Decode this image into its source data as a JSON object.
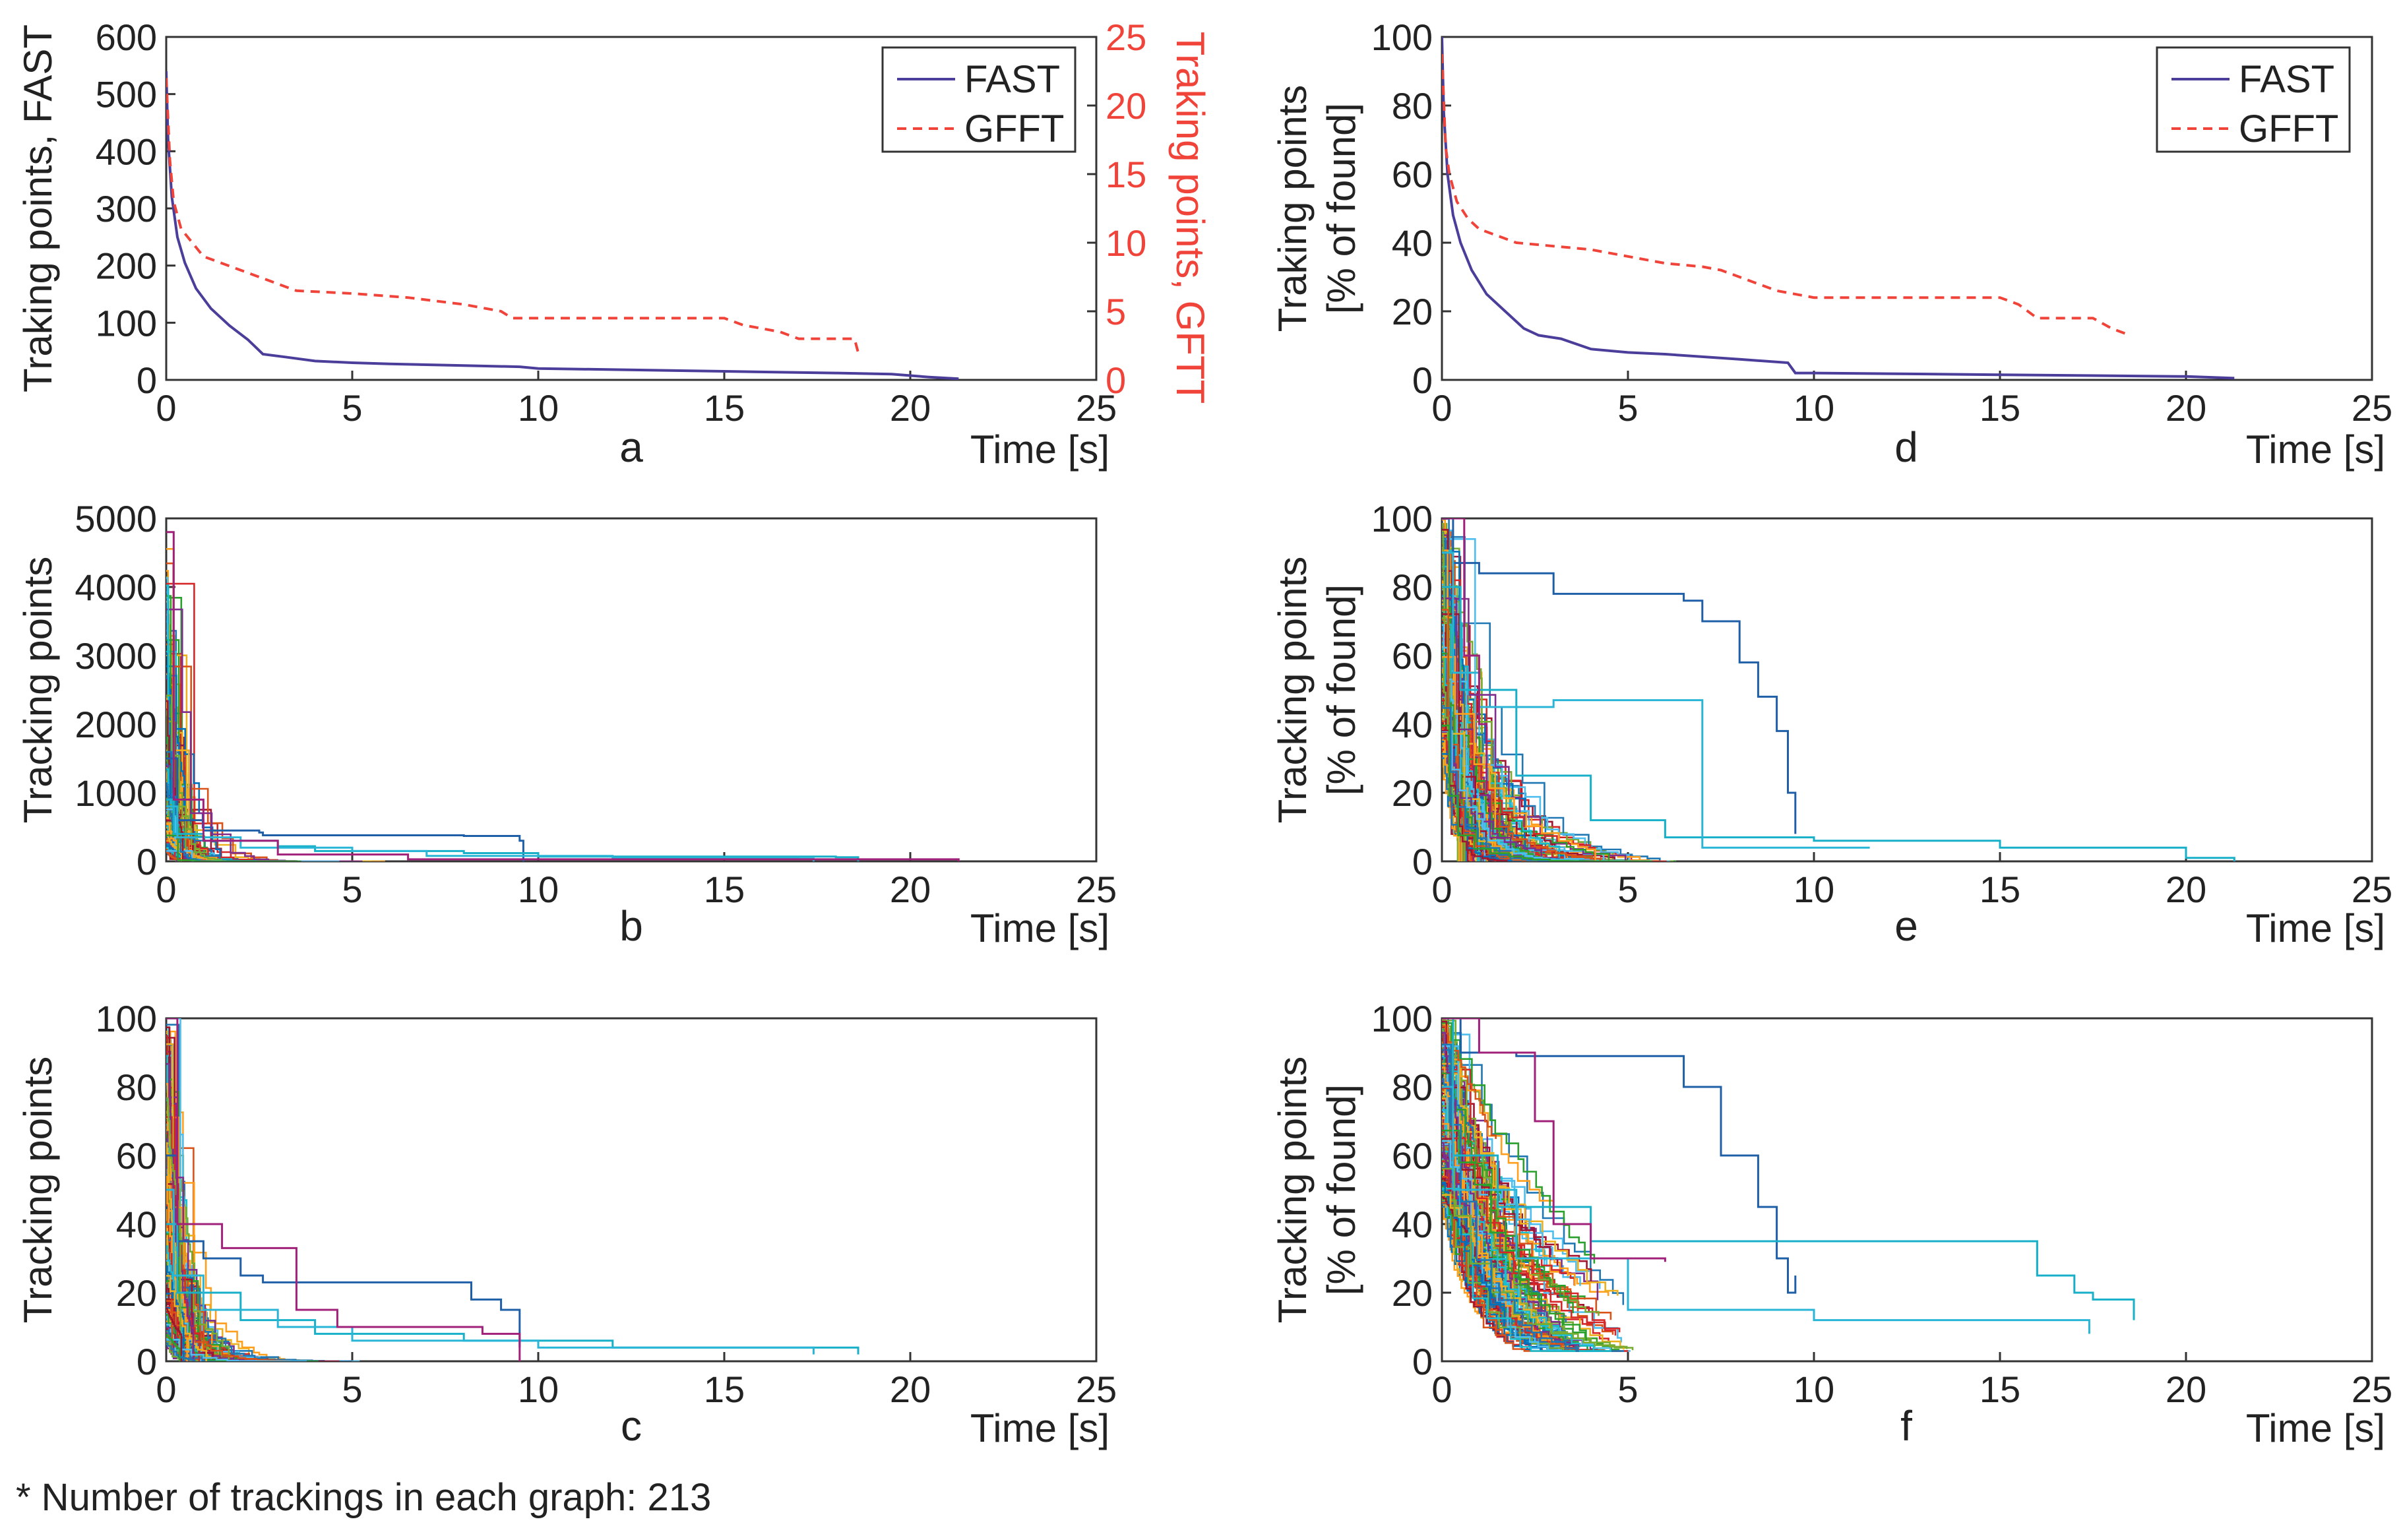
{
  "footnote": "* Number of trackings in each graph: 213",
  "colors": {
    "fast": "#4a3e9a",
    "gfft": "#f0443a",
    "gfft_axis": "#f0443a",
    "palette": [
      "#0072bd",
      "#d95319",
      "#edb120",
      "#7e2f8e",
      "#77ac30",
      "#4dbeee",
      "#a2142f",
      "#1f77b4",
      "#2ca02c",
      "#17becf",
      "#d62728",
      "#ff9f1c"
    ]
  },
  "chart_data": [
    {
      "id": "a",
      "type": "line",
      "letter": "a",
      "xlabel": "Time [s]",
      "ylabel": "Traking points, FAST",
      "y2label": "Traking points, GFTT",
      "xlim": [
        0,
        25
      ],
      "ylim": [
        0,
        600
      ],
      "y2lim": [
        0,
        25
      ],
      "xticks": [
        "0",
        "5",
        "10",
        "15",
        "20",
        "25"
      ],
      "yticks": [
        "0",
        "100",
        "200",
        "300",
        "400",
        "500",
        "600"
      ],
      "y2ticks": [
        "0",
        "5",
        "10",
        "15",
        "20",
        "25"
      ],
      "legend": [
        "FAST",
        "GFFT"
      ],
      "series": [
        {
          "name": "FAST",
          "axis": "left",
          "style": "solid",
          "x": [
            0,
            0.05,
            0.15,
            0.3,
            0.5,
            0.8,
            1.2,
            1.7,
            2.2,
            2.6,
            3.2,
            4,
            5,
            6,
            8,
            9.5,
            10,
            12,
            15,
            18,
            19.5,
            20.5,
            21.3
          ],
          "y": [
            540,
            420,
            320,
            250,
            205,
            160,
            125,
            95,
            70,
            45,
            40,
            33,
            30,
            28,
            25,
            23,
            20,
            18,
            15,
            12,
            10,
            5,
            2
          ]
        },
        {
          "name": "GFFT",
          "axis": "right",
          "style": "dashed",
          "x": [
            0,
            0.1,
            0.2,
            0.4,
            0.7,
            1.0,
            1.5,
            2.0,
            2.5,
            3.0,
            3.5,
            5,
            6.5,
            8,
            9,
            9.3,
            10,
            12,
            15,
            15.5,
            16.5,
            17,
            18.5,
            18.6
          ],
          "y": [
            22,
            16,
            13,
            11,
            10,
            9,
            8.5,
            8,
            7.5,
            7,
            6.5,
            6.3,
            6,
            5.5,
            5,
            4.5,
            4.5,
            4.5,
            4.5,
            4,
            3.5,
            3,
            3,
            2
          ]
        }
      ]
    },
    {
      "id": "d",
      "type": "line",
      "letter": "d",
      "xlabel": "Time [s]",
      "ylabel": "Traking points",
      "ylabel2": "[% of found]",
      "xlim": [
        0,
        25
      ],
      "ylim": [
        0,
        100
      ],
      "xticks": [
        "0",
        "5",
        "10",
        "15",
        "20",
        "25"
      ],
      "yticks": [
        "0",
        "20",
        "40",
        "60",
        "80",
        "100"
      ],
      "legend": [
        "FAST",
        "GFFT"
      ],
      "series": [
        {
          "name": "FAST",
          "style": "solid",
          "x": [
            0,
            0.05,
            0.15,
            0.3,
            0.5,
            0.8,
            1.2,
            1.7,
            2.2,
            2.6,
            3.2,
            4,
            5,
            6,
            8,
            9.3,
            9.5,
            10,
            12,
            15,
            18,
            20,
            21.3
          ],
          "y": [
            100,
            78,
            60,
            48,
            40,
            32,
            25,
            20,
            15,
            13,
            12,
            9,
            8,
            7.5,
            6,
            5,
            2,
            2,
            1.8,
            1.5,
            1.2,
            1,
            0.5
          ]
        },
        {
          "name": "GFFT",
          "style": "dashed",
          "x": [
            0,
            0.1,
            0.2,
            0.4,
            0.7,
            1.0,
            1.5,
            2.0,
            3.0,
            4.0,
            5.0,
            6.0,
            7.0,
            7.5,
            8.0,
            8.5,
            9.0,
            10,
            12,
            15,
            15.5,
            16,
            17.5,
            18,
            18.5
          ],
          "y": [
            95,
            68,
            60,
            52,
            47,
            44,
            42,
            40,
            39,
            38,
            36,
            34,
            33,
            32,
            30,
            28,
            26,
            24,
            24,
            24,
            22,
            18,
            18,
            15,
            13
          ]
        }
      ]
    },
    {
      "id": "b",
      "type": "line",
      "letter": "b",
      "xlabel": "Time [s]",
      "ylabel": "Tracking points",
      "xlim": [
        0,
        25
      ],
      "ylim": [
        0,
        5000
      ],
      "xticks": [
        "0",
        "5",
        "10",
        "15",
        "20",
        "25"
      ],
      "yticks": [
        "0",
        "1000",
        "2000",
        "3000",
        "4000",
        "5000"
      ],
      "series_count": 213,
      "highlight_series": [
        {
          "x": [
            0,
            0.3,
            1,
            2.5,
            2.6,
            8,
            9.5,
            9.6
          ],
          "y": [
            1500,
            600,
            450,
            420,
            380,
            370,
            300,
            0
          ]
        },
        {
          "x": [
            0,
            0.2,
            1,
            3,
            4,
            8,
            10,
            18,
            18.6
          ],
          "y": [
            900,
            400,
            300,
            220,
            150,
            120,
            70,
            60,
            0
          ]
        },
        {
          "x": [
            0,
            0.3,
            2,
            5,
            7,
            12,
            17,
            17.4
          ],
          "y": [
            800,
            350,
            200,
            150,
            80,
            50,
            40,
            0
          ]
        },
        {
          "x": [
            0,
            0.2,
            1,
            3,
            6.5,
            21.3
          ],
          "y": [
            4800,
            900,
            300,
            100,
            30,
            0
          ]
        }
      ]
    },
    {
      "id": "e",
      "type": "line",
      "letter": "e",
      "xlabel": "Time [s]",
      "ylabel": "Tracking points",
      "ylabel2": "[% of found]",
      "xlim": [
        0,
        25
      ],
      "ylim": [
        0,
        100
      ],
      "xticks": [
        "0",
        "5",
        "10",
        "15",
        "20",
        "25"
      ],
      "yticks": [
        "0",
        "20",
        "40",
        "60",
        "80",
        "100"
      ],
      "series_count": 213,
      "highlight_series": [
        {
          "x": [
            0,
            0.3,
            1,
            3,
            6.5,
            7,
            8,
            8.5,
            9,
            9.3,
            9.5
          ],
          "y": [
            100,
            87,
            84,
            78,
            76,
            70,
            58,
            48,
            38,
            20,
            8
          ]
        },
        {
          "x": [
            0,
            0.5,
            2,
            4,
            6,
            10,
            15,
            20,
            21.3
          ],
          "y": [
            80,
            50,
            25,
            12,
            7,
            6,
            4,
            1,
            0
          ]
        },
        {
          "x": [
            0,
            0.3,
            1,
            2,
            3,
            5.5,
            5.6,
            6.9,
            7,
            11.5
          ],
          "y": [
            90,
            55,
            45,
            45,
            47,
            47,
            47,
            47,
            4,
            4
          ]
        },
        {
          "x": [
            0,
            0.2,
            0.5,
            0.6,
            1,
            1.2
          ],
          "y": [
            100,
            100,
            100,
            60,
            40,
            20
          ]
        }
      ]
    },
    {
      "id": "c",
      "type": "line",
      "letter": "c",
      "xlabel": "Time [s]",
      "ylabel": "Tracking points",
      "xlim": [
        0,
        25
      ],
      "ylim": [
        0,
        100
      ],
      "xticks": [
        "0",
        "5",
        "10",
        "15",
        "20",
        "25"
      ],
      "yticks": [
        "0",
        "20",
        "40",
        "60",
        "80",
        "100"
      ],
      "series_count": 213,
      "highlight_series": [
        {
          "x": [
            0,
            0.3,
            1,
            2,
            2.6,
            5,
            7.7,
            8.2,
            9.0,
            9.5
          ],
          "y": [
            60,
            35,
            30,
            25,
            23,
            23,
            23,
            18,
            15,
            4
          ]
        },
        {
          "x": [
            0,
            0.3,
            2,
            4,
            8,
            12,
            18.6
          ],
          "y": [
            40,
            20,
            12,
            8,
            6,
            4,
            2
          ]
        },
        {
          "x": [
            0,
            0.2,
            1,
            3,
            5,
            10,
            17.4
          ],
          "y": [
            50,
            25,
            15,
            10,
            6,
            4,
            2
          ]
        },
        {
          "x": [
            0,
            0.3,
            1.5,
            3.5,
            4.6,
            8.5,
            9.5
          ],
          "y": [
            100,
            40,
            33,
            15,
            10,
            8,
            0
          ]
        }
      ]
    },
    {
      "id": "f",
      "type": "line",
      "letter": "f",
      "xlabel": "Time [s]",
      "ylabel": "Tracking points",
      "ylabel2": "[% of found]",
      "xlim": [
        0,
        25
      ],
      "ylim": [
        0,
        100
      ],
      "xticks": [
        "0",
        "5",
        "10",
        "15",
        "20",
        "25"
      ],
      "yticks": [
        "0",
        "20",
        "40",
        "60",
        "80",
        "100"
      ],
      "series_count": 213,
      "highlight_series": [
        {
          "x": [
            0,
            0.5,
            2,
            6.3,
            6.5,
            7.5,
            8.5,
            9,
            9.3,
            9.5
          ],
          "y": [
            100,
            90,
            89,
            89,
            80,
            60,
            45,
            30,
            20,
            25
          ]
        },
        {
          "x": [
            0,
            0.3,
            1.5,
            4,
            15.5,
            16,
            17,
            17.5,
            18.6
          ],
          "y": [
            100,
            60,
            45,
            35,
            35,
            25,
            20,
            18,
            12
          ]
        },
        {
          "x": [
            0,
            0.3,
            2,
            5,
            10,
            17.4
          ],
          "y": [
            80,
            50,
            30,
            15,
            12,
            8
          ]
        },
        {
          "x": [
            0,
            0.5,
            1,
            2.5,
            3,
            4,
            6
          ],
          "y": [
            100,
            100,
            90,
            70,
            40,
            30,
            29
          ]
        }
      ]
    }
  ]
}
